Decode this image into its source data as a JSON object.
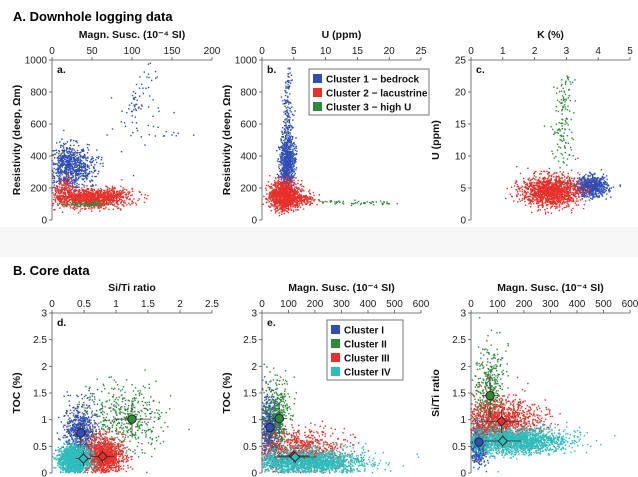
{
  "sections": {
    "a_title": "A. Downhole logging data",
    "b_title": "B. Core data"
  },
  "legend_a": [
    {
      "label": "Cluster 1 − bedrock",
      "color": "#2f4fb5"
    },
    {
      "label": "Cluster 2 − lacustrine",
      "color": "#e8302a"
    },
    {
      "label": "Cluster 3 − high U",
      "color": "#2e8b3a"
    }
  ],
  "legend_b": [
    {
      "label": "Cluster I",
      "color": "#2f4fb5"
    },
    {
      "label": "Cluster II",
      "color": "#2e8b3a"
    },
    {
      "label": "Cluster III",
      "color": "#e8302a"
    },
    {
      "label": "Cluster IV",
      "color": "#2dbdbd"
    }
  ],
  "chart_data": [
    {
      "panel": "a.",
      "type": "scatter",
      "xlabel": "Magn. Susc. (10⁻⁴ SI)",
      "ylabel": "Resistivity (deep, Ωm)",
      "xlim": [
        0,
        200
      ],
      "ylim": [
        0,
        1000
      ],
      "xticks": [
        0,
        50,
        100,
        150,
        200
      ],
      "yticks": [
        0,
        200,
        400,
        600,
        800,
        1000
      ],
      "series": [
        {
          "cluster": "1",
          "color": "#2f4fb5",
          "clouds": [
            {
              "x": 20,
              "y": 330,
              "sx": 12,
              "sy": 70,
              "n": 650
            },
            {
              "x": 40,
              "y": 330,
              "sx": 10,
              "sy": 60,
              "n": 150
            }
          ],
          "lines": [
            {
              "x": [
                95,
                125
              ],
              "y": [
                650,
                940
              ],
              "n": 45,
              "sp": [
                4,
                40
              ]
            },
            {
              "x": 105,
              "y": 600,
              "sx": 20,
              "sy": 100,
              "n": 30
            },
            {
              "x": 150,
              "y": 530,
              "sx": 12,
              "sy": 10,
              "n": 10
            }
          ]
        },
        {
          "cluster": "2",
          "color": "#e8302a",
          "clouds": [
            {
              "x": 45,
              "y": 135,
              "sx": 22,
              "sy": 30,
              "n": 1000
            },
            {
              "x": 15,
              "y": 200,
              "sx": 6,
              "sy": 40,
              "n": 120
            },
            {
              "x": 75,
              "y": 145,
              "sx": 14,
              "sy": 28,
              "n": 200
            }
          ]
        },
        {
          "cluster": "3",
          "color": "#2e8b3a",
          "clouds": [
            {
              "x": 45,
              "y": 100,
              "sx": 15,
              "sy": 8,
              "n": 70
            }
          ]
        }
      ]
    },
    {
      "panel": "b.",
      "type": "scatter",
      "xlabel": "U (ppm)",
      "ylabel": "Resistivity (deep, Ωm)",
      "xlim": [
        0,
        25
      ],
      "ylim": [
        0,
        1000
      ],
      "xticks": [
        0,
        5,
        10,
        15,
        20,
        25
      ],
      "yticks": [
        0,
        200,
        400,
        600,
        800,
        1000
      ],
      "series": [
        {
          "cluster": "1",
          "color": "#2f4fb5",
          "clouds": [
            {
              "x": 4,
              "y": 360,
              "sx": 0.6,
              "sy": 80,
              "n": 750
            },
            {
              "x": 4,
              "y": 600,
              "sx": 0.4,
              "sy": 110,
              "n": 120
            }
          ],
          "lines": [
            {
              "x": [
                3.7,
                4.3
              ],
              "y": [
                700,
                930
              ],
              "n": 40,
              "sp": [
                0.25,
                20
              ]
            }
          ]
        },
        {
          "cluster": "2",
          "color": "#e8302a",
          "clouds": [
            {
              "x": 3.5,
              "y": 150,
              "sx": 1.1,
              "sy": 45,
              "n": 1100
            },
            {
              "x": 6.5,
              "y": 130,
              "sx": 1.0,
              "sy": 20,
              "n": 150
            }
          ]
        },
        {
          "cluster": "3",
          "color": "#2e8b3a",
          "clouds": [],
          "lines": [
            {
              "x": [
                9,
                22
              ],
              "y": [
                115,
                100
              ],
              "n": 55,
              "sp": [
                0.4,
                8
              ]
            }
          ]
        }
      ]
    },
    {
      "panel": "c.",
      "type": "scatter",
      "xlabel": "K (%)",
      "ylabel": "U (ppm)",
      "xlim": [
        0,
        5
      ],
      "ylim": [
        0,
        25
      ],
      "xticks": [
        0,
        1,
        2,
        3,
        4,
        5
      ],
      "yticks": [
        0,
        5,
        10,
        15,
        20,
        25
      ],
      "series": [
        {
          "cluster": "1",
          "color": "#2f4fb5",
          "clouds": [
            {
              "x": 3.8,
              "y": 5.2,
              "sx": 0.25,
              "sy": 0.8,
              "n": 650
            }
          ]
        },
        {
          "cluster": "2",
          "color": "#e8302a",
          "clouds": [
            {
              "x": 2.5,
              "y": 4.5,
              "sx": 0.45,
              "sy": 1.2,
              "n": 1300
            }
          ]
        },
        {
          "cluster": "3",
          "color": "#2e8b3a",
          "clouds": [
            {
              "x": 2.9,
              "y": 14,
              "sx": 0.2,
              "sy": 3.5,
              "n": 110
            }
          ],
          "lines": [
            {
              "x": [
                2.8,
                3.1
              ],
              "y": [
                18,
                22
              ],
              "n": 35,
              "sp": [
                0.1,
                0.5
              ]
            }
          ]
        }
      ]
    },
    {
      "panel": "d.",
      "type": "scatter",
      "xlabel": "Si/Ti ratio",
      "ylabel": "TOC (%)",
      "xlim": [
        0,
        2.5
      ],
      "ylim": [
        0,
        3
      ],
      "xticks": [
        0,
        0.5,
        1,
        1.5,
        2,
        2.5
      ],
      "yticks": [
        0,
        0.5,
        1,
        1.5,
        2,
        2.5,
        3
      ],
      "series": [
        {
          "cluster": "I",
          "color": "#2f4fb5",
          "clouds": [
            {
              "x": 0.45,
              "y": 0.75,
              "sx": 0.13,
              "sy": 0.28,
              "n": 700
            }
          ]
        },
        {
          "cluster": "II",
          "color": "#2e8b3a",
          "clouds": [
            {
              "x": 1.15,
              "y": 1.0,
              "sx": 0.3,
              "sy": 0.32,
              "n": 450
            }
          ]
        },
        {
          "cluster": "III",
          "color": "#e8302a",
          "clouds": [
            {
              "x": 0.8,
              "y": 0.32,
              "sx": 0.16,
              "sy": 0.18,
              "n": 1200
            }
          ]
        },
        {
          "cluster": "IV",
          "color": "#2dbdbd",
          "clouds": [
            {
              "x": 0.35,
              "y": 0.25,
              "sx": 0.12,
              "sy": 0.13,
              "n": 1400
            }
          ]
        }
      ],
      "centroids": [
        {
          "cluster": "I",
          "x": 0.45,
          "y": 0.75,
          "ex": 0.08,
          "ey": 0.23,
          "color": "#2f4fb5",
          "shape": "circle"
        },
        {
          "cluster": "II",
          "x": 1.25,
          "y": 1.01,
          "ex": 0.3,
          "ey": 0.32,
          "color": "#2e8b3a",
          "shape": "circle"
        },
        {
          "cluster": "III",
          "x": 0.79,
          "y": 0.31,
          "ex": 0.18,
          "ey": 0.12,
          "color": "#e8302a",
          "shape": "diamond"
        },
        {
          "cluster": "IV",
          "x": 0.49,
          "y": 0.27,
          "ex": 0.12,
          "ey": 0.15,
          "color": "#2dbdbd",
          "shape": "diamond"
        }
      ]
    },
    {
      "panel": "e.",
      "type": "scatter",
      "xlabel": "Magn. Susc. (10⁻⁴ SI)",
      "ylabel": "TOC (%)",
      "xlim": [
        0,
        600
      ],
      "ylim": [
        0,
        3
      ],
      "xticks": [
        0,
        100,
        200,
        300,
        400,
        500,
        600
      ],
      "yticks": [
        0,
        0.5,
        1,
        1.5,
        2,
        2.5,
        3
      ],
      "series": [
        {
          "cluster": "I",
          "color": "#2f4fb5",
          "clouds": [
            {
              "x": 30,
              "y": 0.85,
              "sx": 20,
              "sy": 0.3,
              "n": 650
            }
          ]
        },
        {
          "cluster": "II",
          "color": "#2e8b3a",
          "clouds": [
            {
              "x": 60,
              "y": 1.05,
              "sx": 25,
              "sy": 0.35,
              "n": 350
            }
          ]
        },
        {
          "cluster": "III",
          "color": "#e8302a",
          "clouds": [
            {
              "x": 150,
              "y": 0.4,
              "sx": 80,
              "sy": 0.2,
              "n": 900
            }
          ]
        },
        {
          "cluster": "IV",
          "color": "#2dbdbd",
          "clouds": [
            {
              "x": 170,
              "y": 0.2,
              "sx": 110,
              "sy": 0.12,
              "n": 1800
            }
          ]
        }
      ],
      "centroids": [
        {
          "cluster": "I",
          "x": 30,
          "y": 0.85,
          "ex": 15,
          "ey": 0.25,
          "color": "#2f4fb5",
          "shape": "circle"
        },
        {
          "cluster": "II",
          "x": 65,
          "y": 1.02,
          "ex": 30,
          "ey": 0.3,
          "color": "#2e8b3a",
          "shape": "circle"
        },
        {
          "cluster": "III",
          "x": 120,
          "y": 0.32,
          "ex": 60,
          "ey": 0.12,
          "color": "#e8302a",
          "shape": "diamond"
        },
        {
          "cluster": "IV",
          "x": 125,
          "y": 0.3,
          "ex": 80,
          "ey": 0.12,
          "color": "#2dbdbd",
          "shape": "diamond"
        }
      ]
    },
    {
      "panel": "",
      "type": "scatter",
      "xlabel": "Magn. Susc. (10⁻⁴ SI)",
      "ylabel": "Si/Ti ratio",
      "xlim": [
        0,
        600
      ],
      "ylim": [
        0,
        3
      ],
      "xticks": [
        0,
        100,
        200,
        300,
        400,
        500,
        600
      ],
      "yticks": [
        0,
        0.5,
        1,
        1.5,
        2,
        2.5,
        3
      ],
      "series": [
        {
          "cluster": "I",
          "color": "#2f4fb5",
          "clouds": [
            {
              "x": 30,
              "y": 0.55,
              "sx": 15,
              "sy": 0.18,
              "n": 500
            }
          ]
        },
        {
          "cluster": "II",
          "color": "#2e8b3a",
          "clouds": [
            {
              "x": 70,
              "y": 1.5,
              "sx": 28,
              "sy": 0.45,
              "n": 450
            }
          ]
        },
        {
          "cluster": "III",
          "color": "#e8302a",
          "clouds": [
            {
              "x": 110,
              "y": 0.95,
              "sx": 75,
              "sy": 0.22,
              "n": 1300
            }
          ]
        },
        {
          "cluster": "IV",
          "color": "#2dbdbd",
          "clouds": [
            {
              "x": 160,
              "y": 0.6,
              "sx": 100,
              "sy": 0.12,
              "n": 1800
            }
          ]
        }
      ],
      "centroids": [
        {
          "cluster": "I",
          "x": 30,
          "y": 0.58,
          "ex": 15,
          "ey": 0.15,
          "color": "#2f4fb5",
          "shape": "circle"
        },
        {
          "cluster": "II",
          "x": 72,
          "y": 1.45,
          "ex": 30,
          "ey": 0.4,
          "color": "#2e8b3a",
          "shape": "circle"
        },
        {
          "cluster": "III",
          "x": 115,
          "y": 0.97,
          "ex": 70,
          "ey": 0.22,
          "color": "#e8302a",
          "shape": "diamond"
        },
        {
          "cluster": "IV",
          "x": 120,
          "y": 0.6,
          "ex": 70,
          "ey": 0.12,
          "color": "#2dbdbd",
          "shape": "diamond"
        }
      ]
    }
  ]
}
